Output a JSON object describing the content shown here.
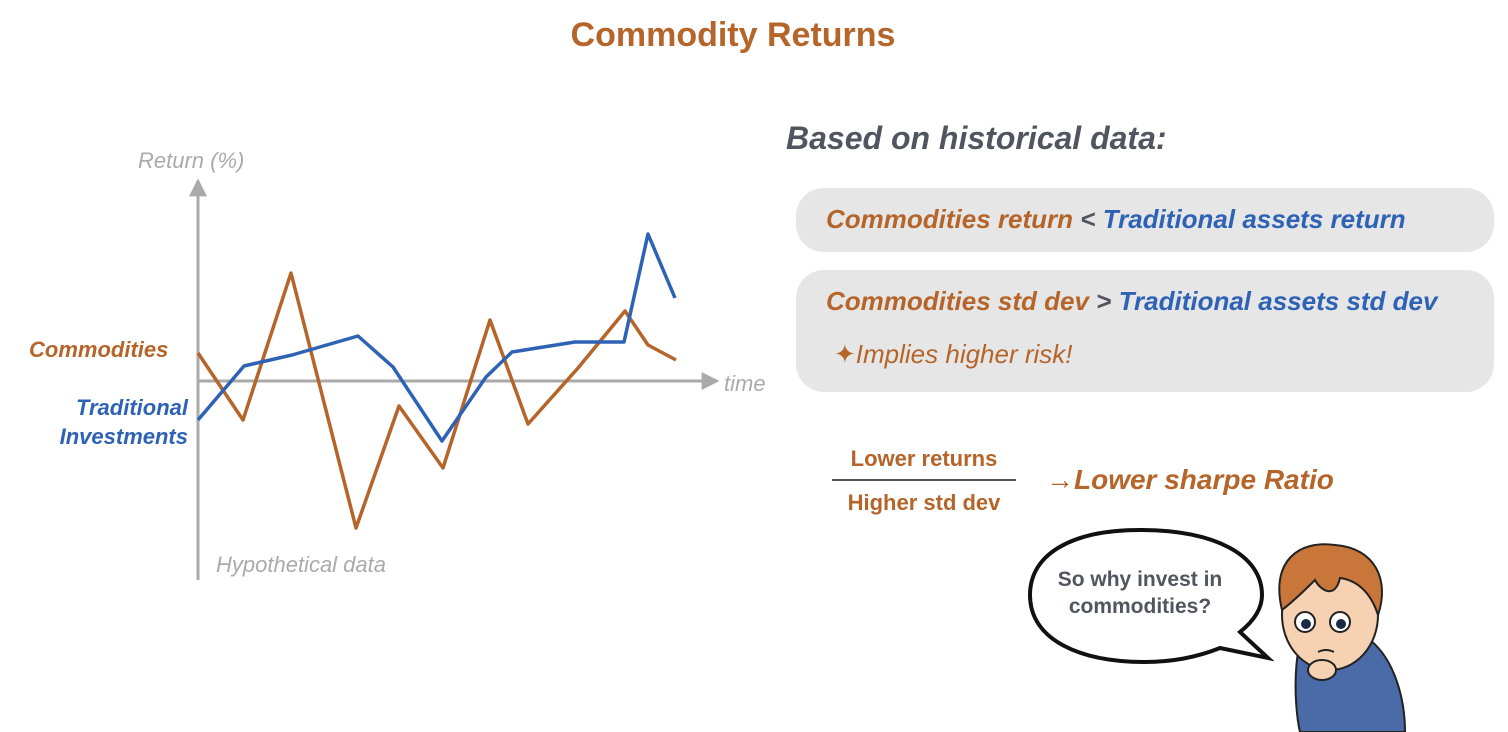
{
  "title": "Commodity Returns",
  "chart": {
    "y_label": "Return (%)",
    "x_label": "time",
    "series_labels": [
      "Commodities",
      "Traditional Investments"
    ],
    "note": "Hypothetical data"
  },
  "heading": "Based on historical data:",
  "box1": {
    "left": "Commodities return",
    "op": "<",
    "right": "Traditional assets return"
  },
  "box2": {
    "left": "Commodities std dev",
    "op": ">",
    "right": "Traditional assets std dev",
    "sub": "✦Implies higher risk!"
  },
  "fraction": {
    "numerator": "Lower returns",
    "denominator": "Higher std dev",
    "result": "→Lower sharpe Ratio"
  },
  "bubble": "So why invest in commodities?"
}
